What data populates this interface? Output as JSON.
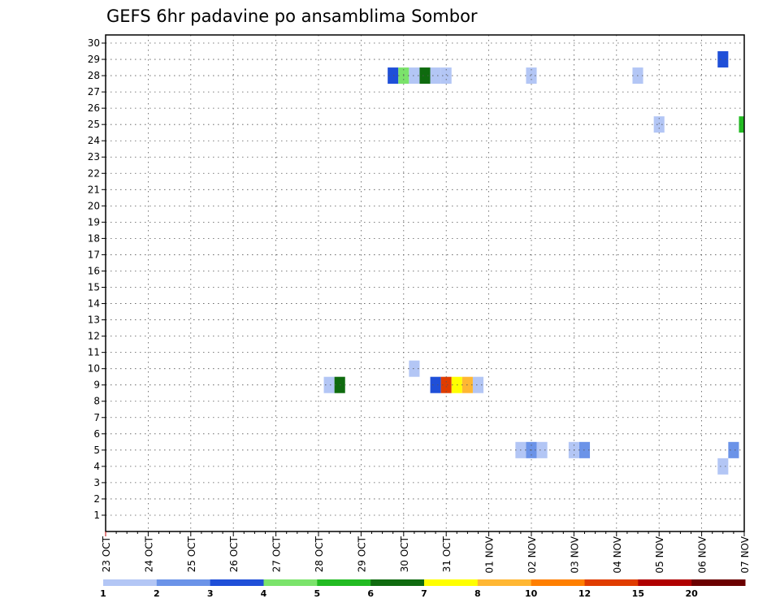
{
  "chart_data": {
    "type": "heatmap",
    "title": "GEFS 6hr padavine po ansamblima Sombor",
    "y_ticks": [
      1,
      2,
      3,
      4,
      5,
      6,
      7,
      8,
      9,
      10,
      11,
      12,
      13,
      14,
      15,
      16,
      17,
      18,
      19,
      20,
      21,
      22,
      23,
      24,
      25,
      26,
      27,
      28,
      29,
      30
    ],
    "ylim": [
      0,
      30.5
    ],
    "x_tick_labels": [
      "23 OCT",
      "24 OCT",
      "25 OCT",
      "26 OCT",
      "27 OCT",
      "28 OCT",
      "29 OCT",
      "30 OCT",
      "31 OCT",
      "01 NOV",
      "02 NOV",
      "03 NOV",
      "04 NOV",
      "05 NOV",
      "06 NOV",
      "07 NOV"
    ],
    "xlim": [
      "23 OCT",
      "07 NOV"
    ],
    "grid": true,
    "colorbar": {
      "colors": [
        "#b3c6f5",
        "#6b93e8",
        "#1f4fd8",
        "#7be36b",
        "#22bb22",
        "#0f6b0f",
        "#ffff00",
        "#ffb733",
        "#ff7f00",
        "#e03c00",
        "#b00000",
        "#6b0000"
      ],
      "labels": [
        "1",
        "2",
        "3",
        "4",
        "5",
        "6",
        "7",
        "8",
        "10",
        "12",
        "15",
        "20"
      ]
    },
    "cells": [
      {
        "member": 29,
        "time": "06 NOV 12Z",
        "color": "#1f4fd8"
      },
      {
        "member": 28,
        "time": "29 OCT 18Z",
        "color": "#1f4fd8"
      },
      {
        "member": 28,
        "time": "30 OCT 00Z",
        "color": "#7be36b"
      },
      {
        "member": 28,
        "time": "30 OCT 06Z",
        "color": "#b3c6f5"
      },
      {
        "member": 28,
        "time": "30 OCT 12Z",
        "color": "#0f6b0f"
      },
      {
        "member": 28,
        "time": "30 OCT 18Z",
        "color": "#b3c6f5"
      },
      {
        "member": 28,
        "time": "31 OCT 00Z",
        "color": "#b3c6f5"
      },
      {
        "member": 28,
        "time": "02 NOV 00Z",
        "color": "#b3c6f5"
      },
      {
        "member": 28,
        "time": "04 NOV 12Z",
        "color": "#b3c6f5"
      },
      {
        "member": 25,
        "time": "05 NOV 00Z",
        "color": "#b3c6f5"
      },
      {
        "member": 25,
        "time": "07 NOV 00Z",
        "color": "#22bb22"
      },
      {
        "member": 10,
        "time": "30 OCT 06Z",
        "color": "#b3c6f5"
      },
      {
        "member": 9,
        "time": "28 OCT 06Z",
        "color": "#b3c6f5"
      },
      {
        "member": 9,
        "time": "28 OCT 12Z",
        "color": "#0f6b0f"
      },
      {
        "member": 9,
        "time": "30 OCT 18Z",
        "color": "#1f4fd8"
      },
      {
        "member": 9,
        "time": "31 OCT 00Z",
        "color": "#e03c00"
      },
      {
        "member": 9,
        "time": "31 OCT 06Z",
        "color": "#ffff00"
      },
      {
        "member": 9,
        "time": "31 OCT 12Z",
        "color": "#ffb733"
      },
      {
        "member": 9,
        "time": "31 OCT 18Z",
        "color": "#b3c6f5"
      },
      {
        "member": 5,
        "time": "01 NOV 18Z",
        "color": "#b3c6f5"
      },
      {
        "member": 5,
        "time": "02 NOV 00Z",
        "color": "#6b93e8"
      },
      {
        "member": 5,
        "time": "02 NOV 06Z",
        "color": "#b3c6f5"
      },
      {
        "member": 5,
        "time": "03 NOV 00Z",
        "color": "#b3c6f5"
      },
      {
        "member": 5,
        "time": "03 NOV 06Z",
        "color": "#6b93e8"
      },
      {
        "member": 5,
        "time": "06 NOV 18Z",
        "color": "#6b93e8"
      },
      {
        "member": 4,
        "time": "06 NOV 12Z",
        "color": "#b3c6f5"
      }
    ]
  }
}
